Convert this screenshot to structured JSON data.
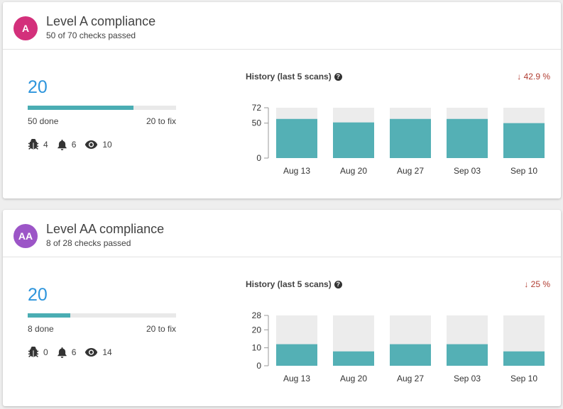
{
  "cards": [
    {
      "badge": "A",
      "badge_color": "#d3307b",
      "title": "Level A compliance",
      "subtitle": "50 of 70 checks passed",
      "remaining": "20",
      "progress_fraction": 0.7142857,
      "done_label": "50 done",
      "fix_label": "20 to fix",
      "issues": {
        "bugs": "4",
        "notifications": "6",
        "views": "10"
      },
      "history_title": "History (last 5 scans)",
      "delta": "↓ 42.9 %",
      "chart_data": {
        "type": "bar",
        "categories": [
          "Aug 13",
          "Aug 20",
          "Aug 27",
          "Sep 03",
          "Sep 10"
        ],
        "values": [
          56,
          51,
          56,
          56,
          50
        ],
        "max": 72,
        "yticks": [
          0,
          50,
          72
        ],
        "bar_color": "#54b0b5",
        "background_color": "#ececec"
      }
    },
    {
      "badge": "AA",
      "badge_color": "#9c55c7",
      "title": "Level AA compliance",
      "subtitle": "8 of 28 checks passed",
      "remaining": "20",
      "progress_fraction": 0.2857143,
      "done_label": "8 done",
      "fix_label": "20 to fix",
      "issues": {
        "bugs": "0",
        "notifications": "6",
        "views": "14"
      },
      "history_title": "History (last 5 scans)",
      "delta": "↓ 25 %",
      "chart_data": {
        "type": "bar",
        "categories": [
          "Aug 13",
          "Aug 20",
          "Aug 27",
          "Sep 03",
          "Sep 10"
        ],
        "values": [
          12,
          8,
          12,
          12,
          8
        ],
        "max": 28,
        "yticks": [
          0,
          10,
          20,
          28
        ],
        "bar_color": "#54b0b5",
        "background_color": "#ececec"
      }
    }
  ]
}
